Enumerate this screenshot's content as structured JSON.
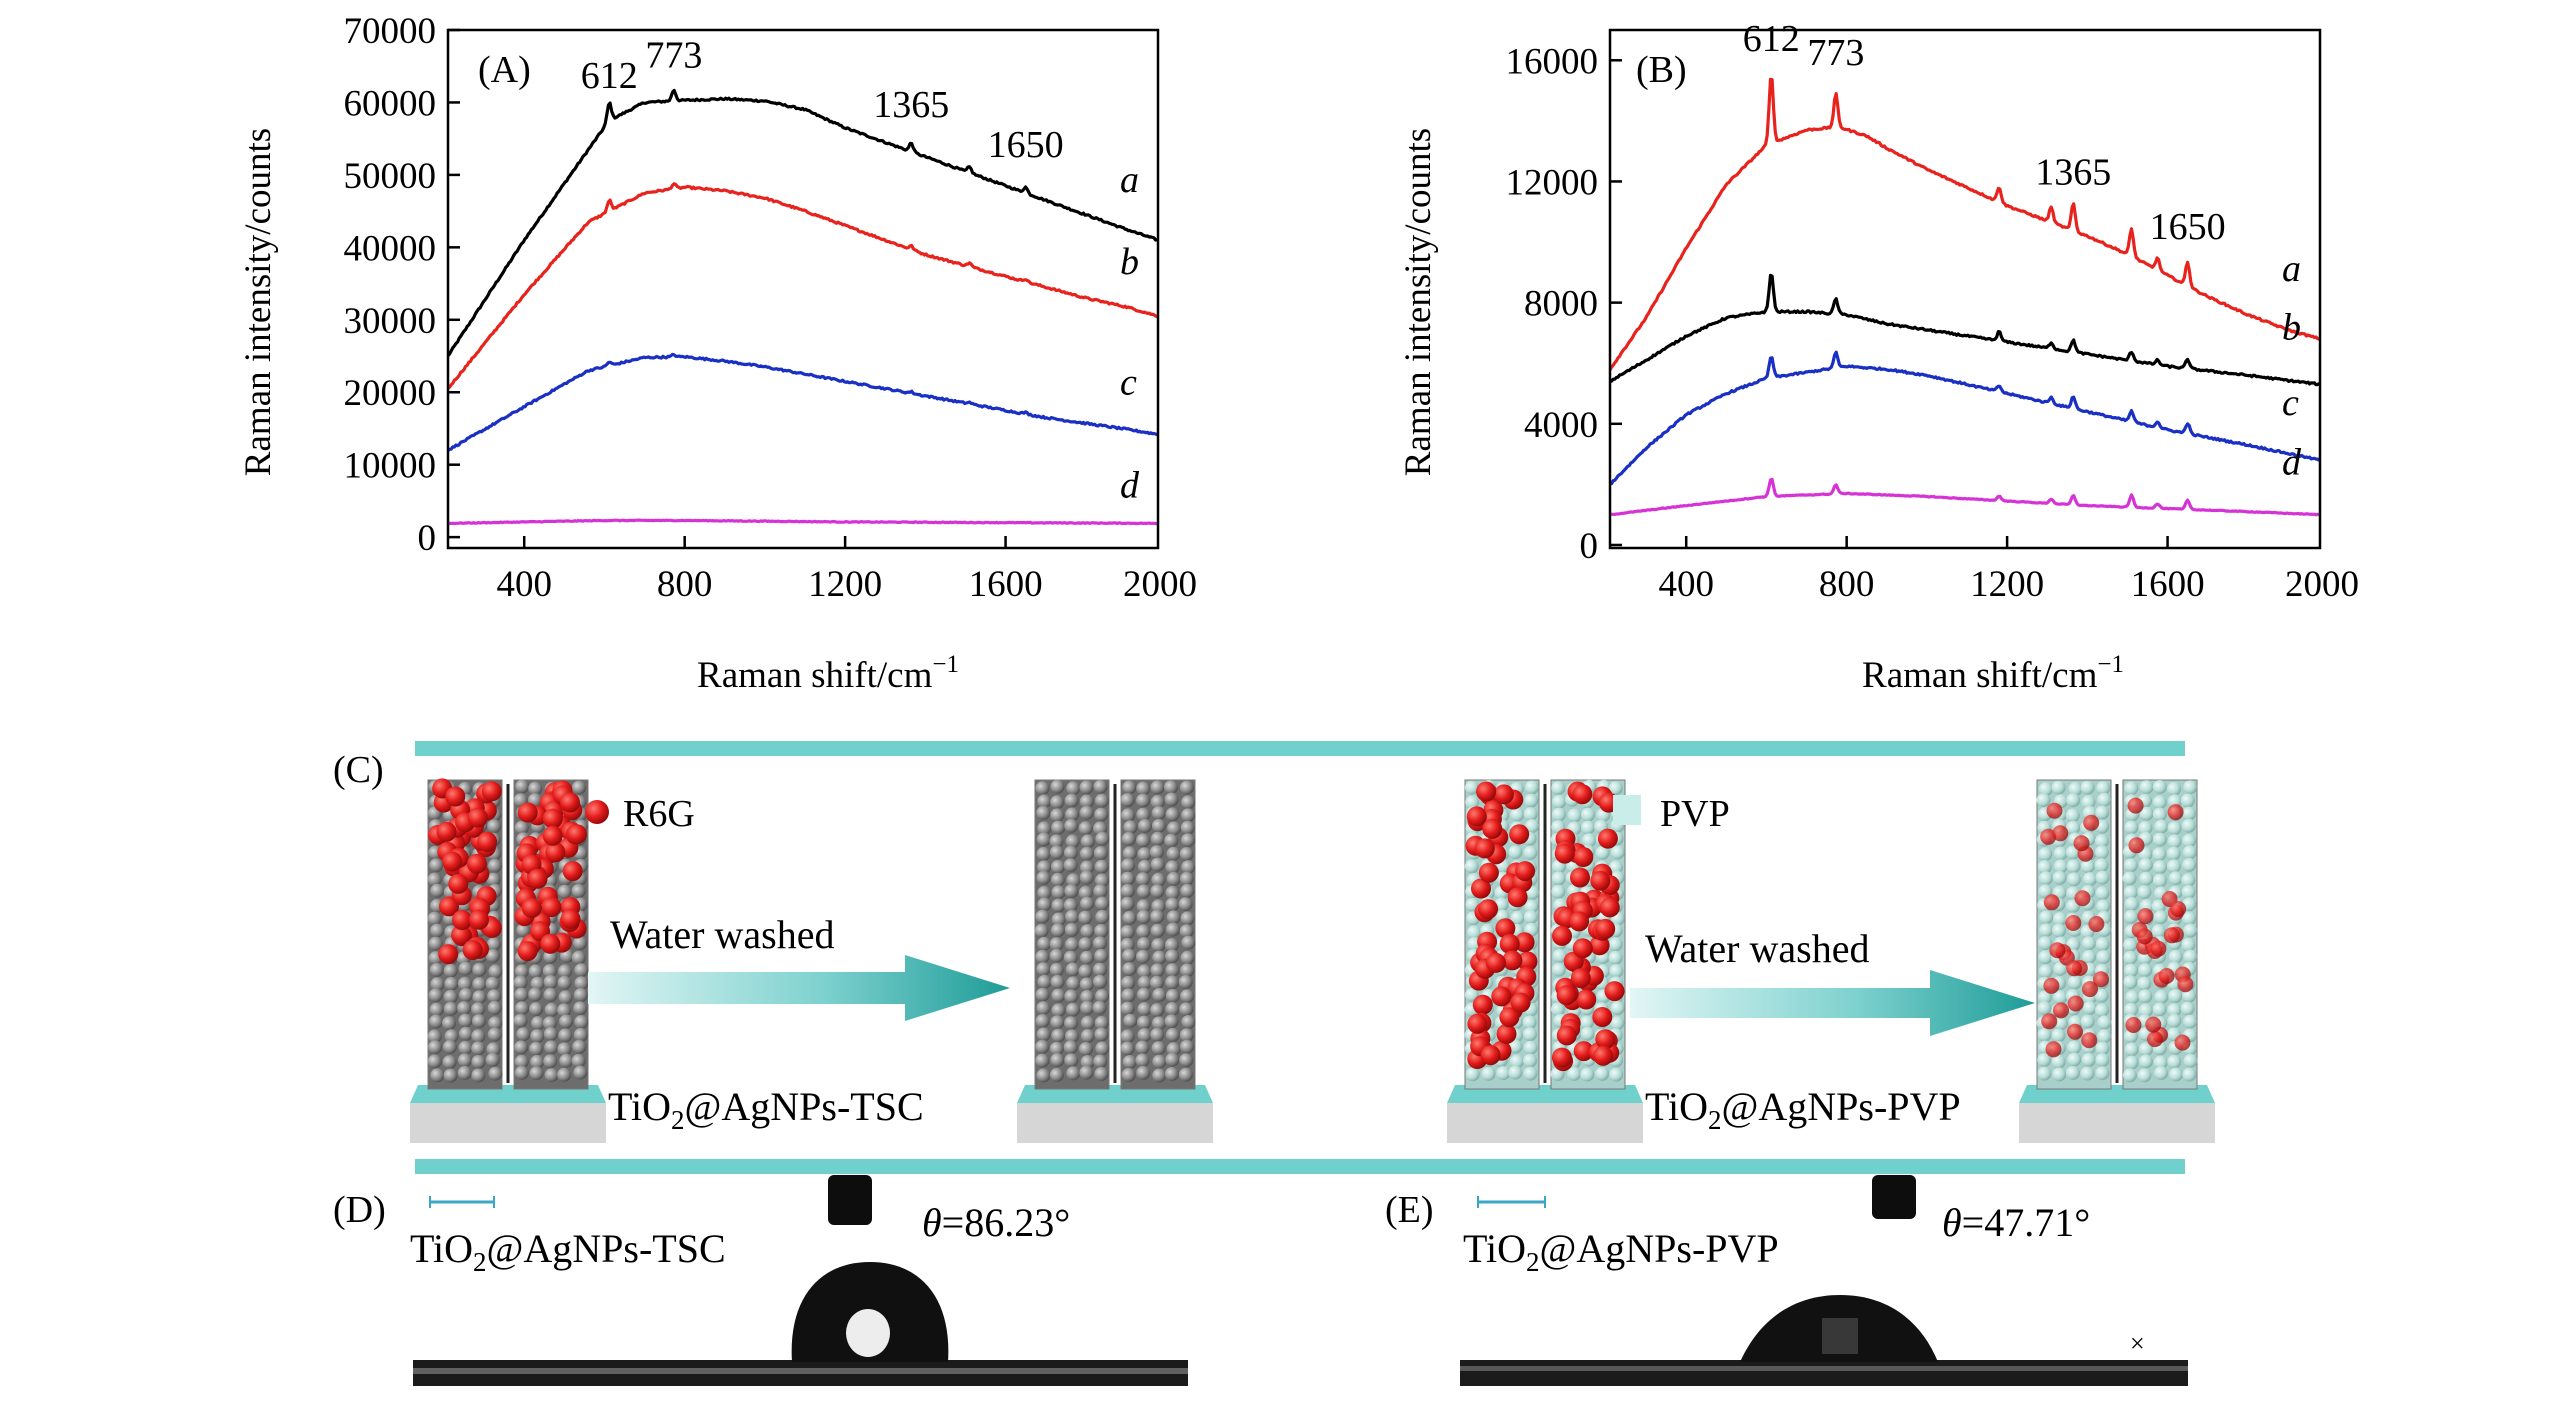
{
  "chart_data": [
    {
      "panel": "(A)",
      "type": "line",
      "xlabel": "Raman shift/cm",
      "xlabel_sup": "−1",
      "ylabel": "Raman intensity/counts",
      "xlim": [
        210,
        1980
      ],
      "ylim": [
        -1500,
        70000
      ],
      "xticks": [
        400,
        800,
        1200,
        1600,
        2000
      ],
      "yticks": [
        0,
        10000,
        20000,
        30000,
        40000,
        50000,
        60000,
        70000
      ],
      "grid": false,
      "peak_labels": [
        {
          "text": "612",
          "x": 612,
          "y": 62000
        },
        {
          "text": "773",
          "x": 773,
          "y": 64800
        },
        {
          "text": "1365",
          "x": 1365,
          "y": 58000
        },
        {
          "text": "1650",
          "x": 1650,
          "y": 52500
        }
      ],
      "peaks": [
        612,
        773,
        1365,
        1510,
        1650
      ],
      "series": [
        {
          "name": "a",
          "color": "#000000",
          "x": [
            210,
            400,
            560,
            612,
            700,
            800,
            900,
            1000,
            1100,
            1200,
            1300,
            1400,
            1500,
            1600,
            1700,
            1800,
            1900,
            1980
          ],
          "y": [
            25000,
            41000,
            53500,
            57500,
            60000,
            60300,
            60500,
            60200,
            59000,
            56500,
            54500,
            52500,
            50500,
            48500,
            46500,
            44500,
            42500,
            41000
          ],
          "peak_heights": [
            2500,
            1500,
            1200,
            800,
            800
          ]
        },
        {
          "name": "b",
          "color": "#e8221c",
          "x": [
            210,
            400,
            560,
            700,
            800,
            900,
            1000,
            1100,
            1200,
            1300,
            1400,
            1500,
            1600,
            1700,
            1800,
            1900,
            1980
          ],
          "y": [
            20500,
            33500,
            43500,
            47500,
            48300,
            47800,
            46800,
            45000,
            43000,
            41000,
            39000,
            37500,
            36000,
            34500,
            33000,
            31800,
            30500
          ],
          "peak_heights": [
            1500,
            700,
            500,
            500,
            400
          ]
        },
        {
          "name": "c",
          "color": "#1a2fc4",
          "x": [
            210,
            400,
            560,
            700,
            800,
            900,
            1000,
            1100,
            1200,
            1300,
            1400,
            1500,
            1600,
            1700,
            1800,
            1900,
            1980
          ],
          "y": [
            12000,
            18000,
            23000,
            24800,
            24900,
            24300,
            23500,
            22500,
            21500,
            20500,
            19500,
            18500,
            17500,
            16500,
            15700,
            14900,
            14200
          ],
          "peak_heights": [
            500,
            300,
            200,
            200,
            200
          ]
        },
        {
          "name": "d",
          "color": "#d633d6",
          "x": [
            210,
            600,
            800,
            1200,
            1600,
            1980
          ],
          "y": [
            1900,
            2300,
            2300,
            2100,
            2000,
            1900
          ],
          "peak_heights": [
            0,
            0,
            0,
            0,
            0
          ]
        }
      ]
    },
    {
      "panel": "(B)",
      "type": "line",
      "xlabel": "Raman shift/cm",
      "xlabel_sup": "−1",
      "ylabel": "Raman intensity/counts",
      "xlim": [
        210,
        1980
      ],
      "ylim": [
        -100,
        17000
      ],
      "xticks": [
        400,
        800,
        1200,
        1600,
        2000
      ],
      "yticks": [
        0,
        4000,
        8000,
        12000,
        16000
      ],
      "grid": false,
      "peak_labels": [
        {
          "text": "612",
          "x": 612,
          "y": 16300
        },
        {
          "text": "773",
          "x": 773,
          "y": 15850
        },
        {
          "text": "1365",
          "x": 1365,
          "y": 11900
        },
        {
          "text": "1650",
          "x": 1650,
          "y": 10100
        }
      ],
      "peaks": [
        612,
        773,
        1180,
        1310,
        1365,
        1510,
        1575,
        1650
      ],
      "series": [
        {
          "name": "a",
          "color": "#e8221c",
          "x": [
            210,
            300,
            400,
            500,
            600,
            700,
            780,
            850,
            900,
            1000,
            1100,
            1200,
            1300,
            1400,
            1500,
            1600,
            1700,
            1800,
            1900,
            1980
          ],
          "y": [
            5800,
            7500,
            9800,
            11900,
            13200,
            13700,
            13800,
            13500,
            13100,
            12400,
            11800,
            11200,
            10700,
            10200,
            9600,
            8900,
            8200,
            7600,
            7100,
            6800
          ],
          "peak_heights": [
            2300,
            1100,
            500,
            500,
            900,
            900,
            400,
            800
          ]
        },
        {
          "name": "b",
          "color": "#000000",
          "x": [
            210,
            300,
            400,
            500,
            600,
            700,
            800,
            900,
            1000,
            1200,
            1400,
            1600,
            1800,
            1980
          ],
          "y": [
            5400,
            6100,
            6900,
            7500,
            7700,
            7700,
            7600,
            7300,
            7100,
            6700,
            6300,
            5900,
            5600,
            5300
          ],
          "peak_heights": [
            1300,
            500,
            300,
            200,
            400,
            300,
            150,
            300
          ]
        },
        {
          "name": "c",
          "color": "#1a2fc4",
          "x": [
            210,
            300,
            400,
            500,
            600,
            700,
            800,
            900,
            1000,
            1200,
            1400,
            1600,
            1800,
            1980
          ],
          "y": [
            2000,
            3200,
            4300,
            5000,
            5500,
            5700,
            5900,
            5800,
            5600,
            5000,
            4400,
            3800,
            3300,
            2800
          ],
          "peak_heights": [
            700,
            500,
            200,
            200,
            400,
            350,
            200,
            350
          ]
        },
        {
          "name": "d",
          "color": "#d633d6",
          "x": [
            210,
            400,
            600,
            800,
            1000,
            1200,
            1400,
            1600,
            1800,
            1980
          ],
          "y": [
            1000,
            1300,
            1600,
            1700,
            1600,
            1450,
            1300,
            1200,
            1100,
            1000
          ],
          "peak_heights": [
            600,
            300,
            150,
            150,
            300,
            400,
            150,
            300
          ]
        }
      ]
    }
  ],
  "panel_c": {
    "label": "(C)",
    "legend_r6g": "R6G",
    "legend_pvp": "PVP",
    "arrow_left_text": "Water washed",
    "arrow_right_text": "Water washed",
    "caption_left": "TiO",
    "caption_left_sub": "2",
    "caption_left_rest": "@AgNPs-TSC",
    "caption_right": "TiO",
    "caption_right_sub": "2",
    "caption_right_rest": "@AgNPs-PVP",
    "colors": {
      "r6g": "#e31b1b",
      "pvp": "#c9eee9",
      "ag": "#8d8d8d",
      "rail": "#6fd0cc",
      "substrate": "#d6d6d6"
    }
  },
  "panel_d": {
    "label": "(D)",
    "sample": "TiO",
    "sample_sub": "2",
    "sample_rest": "@AgNPs-TSC",
    "theta_symbol": "θ",
    "theta_value": "=86.23°"
  },
  "panel_e": {
    "label": "(E)",
    "sample": "TiO",
    "sample_sub": "2",
    "sample_rest": "@AgNPs-PVP",
    "theta_symbol": "θ",
    "theta_value": "=47.71°"
  }
}
